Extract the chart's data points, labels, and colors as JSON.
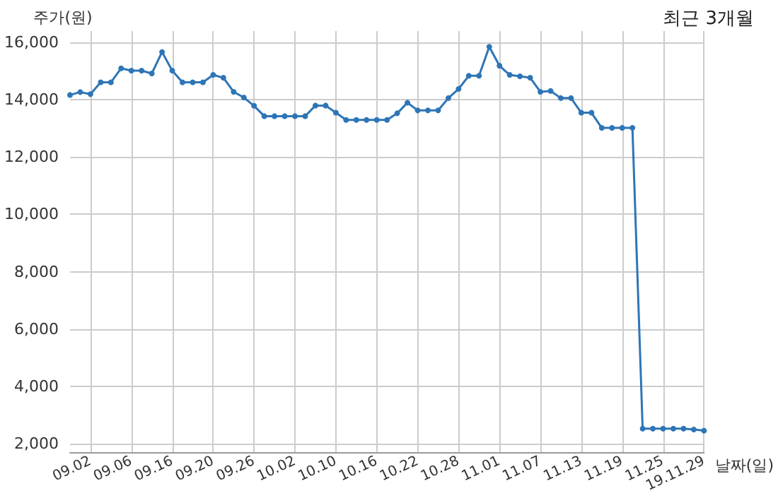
{
  "chart_data": {
    "type": "line",
    "title": "최근 3개월",
    "xlabel": "날짜(일)",
    "ylabel": "주가(원)",
    "categories": [
      null,
      null,
      "09.02",
      null,
      null,
      null,
      "09.06",
      null,
      null,
      null,
      "09.16",
      null,
      null,
      null,
      "09.20",
      null,
      null,
      null,
      "09.26",
      null,
      null,
      null,
      "10.02",
      null,
      null,
      null,
      "10.10",
      null,
      null,
      null,
      "10.16",
      null,
      null,
      null,
      "10.22",
      null,
      null,
      null,
      "10.28",
      null,
      null,
      null,
      "11.01",
      null,
      null,
      null,
      "11.07",
      null,
      null,
      null,
      "11.13",
      null,
      null,
      null,
      "11.19",
      null,
      null,
      null,
      "11.25",
      null,
      null,
      null,
      "19.11.29"
    ],
    "series": [
      {
        "color": "#2e75b6",
        "values": [
          14170,
          14270,
          14200,
          14610,
          14610,
          15100,
          15020,
          15020,
          14920,
          15670,
          15020,
          14610,
          14610,
          14610,
          14870,
          14770,
          14280,
          14080,
          13790,
          13430,
          13430,
          13430,
          13430,
          13430,
          13800,
          13800,
          13550,
          13300,
          13300,
          13300,
          13300,
          13300,
          13530,
          13900,
          13630,
          13630,
          13630,
          14060,
          14380,
          14840,
          14840,
          15850,
          15190,
          14870,
          14820,
          14770,
          14280,
          14310,
          14060,
          14060,
          13550,
          13550,
          13020,
          13020,
          13020,
          13020,
          2520,
          2520,
          2520,
          2520,
          2520,
          2490,
          2450
        ]
      }
    ],
    "ylim": [
      1700,
      16400
    ],
    "yticks": [
      {
        "value": 2000,
        "label": "2,000"
      },
      {
        "value": 4000,
        "label": "4,000"
      },
      {
        "value": 6000,
        "label": "6,000"
      },
      {
        "value": 8000,
        "label": "8,000"
      },
      {
        "value": 10000,
        "label": "10,000"
      },
      {
        "value": 12000,
        "label": "12,000"
      },
      {
        "value": 14000,
        "label": "14,000"
      },
      {
        "value": 16000,
        "label": "16,000"
      }
    ],
    "grid": true,
    "marker": "circle",
    "line_style": "solid"
  }
}
